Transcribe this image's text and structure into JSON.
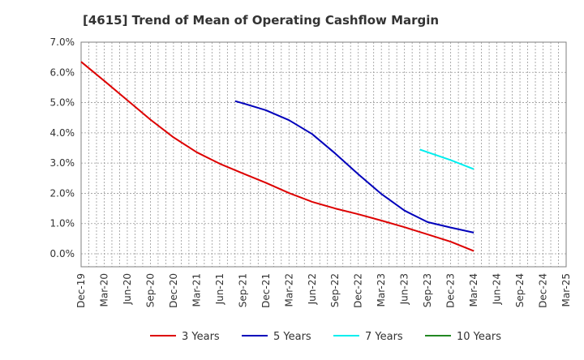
{
  "chart_data": {
    "type": "line",
    "title": "[4615]  Trend of Mean of Operating Cashflow Margin",
    "xlabel": "",
    "ylabel": "",
    "ylim": [
      0,
      7
    ],
    "y_ticks": [
      {
        "value": 0,
        "label": "0.0%"
      },
      {
        "value": 1,
        "label": "1.0%"
      },
      {
        "value": 2,
        "label": "2.0%"
      },
      {
        "value": 3,
        "label": "3.0%"
      },
      {
        "value": 4,
        "label": "4.0%"
      },
      {
        "value": 5,
        "label": "5.0%"
      },
      {
        "value": 6,
        "label": "6.0%"
      },
      {
        "value": 7,
        "label": "7.0%"
      }
    ],
    "x_ticks": [
      "Dec-19",
      "Mar-20",
      "Jun-20",
      "Sep-20",
      "Dec-20",
      "Mar-21",
      "Jun-21",
      "Sep-21",
      "Dec-21",
      "Mar-22",
      "Jun-22",
      "Sep-22",
      "Dec-22",
      "Mar-23",
      "Jun-23",
      "Sep-23",
      "Dec-23",
      "Mar-24",
      "Jun-24",
      "Sep-24",
      "Dec-24",
      "Mar-25"
    ],
    "grid": true,
    "legend_position": "bottom",
    "series": [
      {
        "name": "3 Years",
        "color": "#dd0000",
        "points": [
          [
            0,
            6.35
          ],
          [
            1,
            5.72
          ],
          [
            2,
            5.08
          ],
          [
            3,
            4.44
          ],
          [
            4,
            3.85
          ],
          [
            5,
            3.36
          ],
          [
            6,
            2.98
          ],
          [
            7,
            2.66
          ],
          [
            8,
            2.35
          ],
          [
            9,
            2.01
          ],
          [
            10,
            1.72
          ],
          [
            11,
            1.5
          ],
          [
            12,
            1.31
          ],
          [
            13,
            1.1
          ],
          [
            14,
            0.88
          ],
          [
            15,
            0.64
          ],
          [
            16,
            0.4
          ],
          [
            17,
            0.09
          ]
        ]
      },
      {
        "name": "5 Years",
        "color": "#0000bb",
        "points": [
          [
            6.67,
            5.05
          ],
          [
            7,
            4.98
          ],
          [
            8,
            4.75
          ],
          [
            9,
            4.42
          ],
          [
            10,
            3.96
          ],
          [
            11,
            3.32
          ],
          [
            12,
            2.63
          ],
          [
            13,
            1.98
          ],
          [
            14,
            1.43
          ],
          [
            15,
            1.05
          ],
          [
            16,
            0.87
          ],
          [
            17,
            0.7
          ]
        ]
      },
      {
        "name": "7 Years",
        "color": "#00eeee",
        "points": [
          [
            14.67,
            3.45
          ],
          [
            15,
            3.36
          ],
          [
            16,
            3.1
          ],
          [
            17,
            2.8
          ]
        ]
      },
      {
        "name": "10 Years",
        "color": "#228822",
        "points": []
      }
    ]
  }
}
